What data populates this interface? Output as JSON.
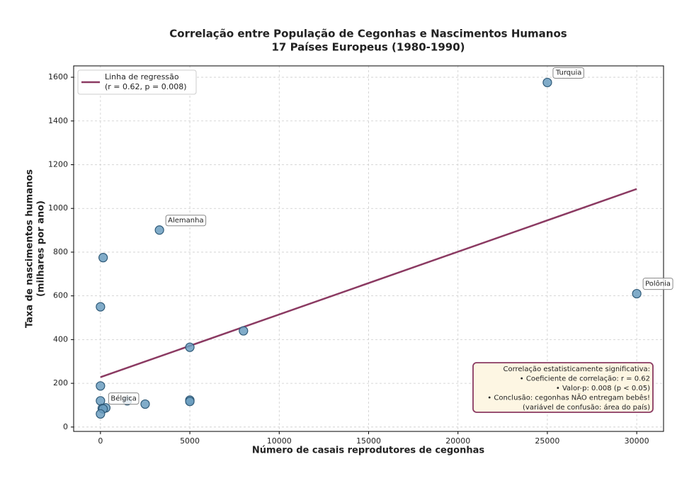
{
  "chart_data": {
    "type": "scatter",
    "title": [
      "Correlação entre População de Cegonhas e Nascimentos Humanos",
      "17 Países Europeus (1980-1990)"
    ],
    "xlabel": "Número de casais reprodutores de cegonhas",
    "ylabel": [
      "Taxa de nascimentos humanos",
      "(milhares por ano)"
    ],
    "xlim": [
      -1500,
      31500
    ],
    "ylim": [
      -20,
      1652
    ],
    "xticks": [
      0,
      5000,
      10000,
      15000,
      20000,
      25000,
      30000
    ],
    "yticks": [
      0,
      200,
      400,
      600,
      800,
      1000,
      1200,
      1400,
      1600
    ],
    "grid": true,
    "points": {
      "color": "#6b9dbf",
      "edge_color": "#2f5a78",
      "x": [
        25000,
        3300,
        150,
        30000,
        0,
        8000,
        5000,
        0,
        0,
        5000,
        5000,
        1500,
        2500,
        100,
        300,
        150,
        0
      ],
      "values": [
        1576,
        901,
        775,
        610,
        550,
        440,
        365,
        188,
        120,
        123,
        117,
        120,
        105,
        85,
        88,
        83,
        60
      ],
      "labels": [
        "Turquia",
        "Alemanha",
        null,
        "Polônia",
        null,
        null,
        null,
        null,
        null,
        null,
        null,
        null,
        null,
        "Bélgica",
        null,
        null,
        null
      ]
    },
    "regression": {
      "name": [
        "Linha de regressão",
        "(r = 0.62, p = 0.008)"
      ],
      "color": "#8b3a62",
      "x": [
        0,
        30000
      ],
      "values": [
        228,
        1089
      ]
    },
    "legend_position": "upper left",
    "annotation": [
      "Correlação estatisticamente significativa:",
      "• Coeficiente de correlação: r = 0.62",
      "• Valor-p: 0.008 (p < 0.05)",
      "• Conclusão: cegonhas NÃO entregam bebês!",
      "(variável de confusão: área do país)"
    ]
  }
}
